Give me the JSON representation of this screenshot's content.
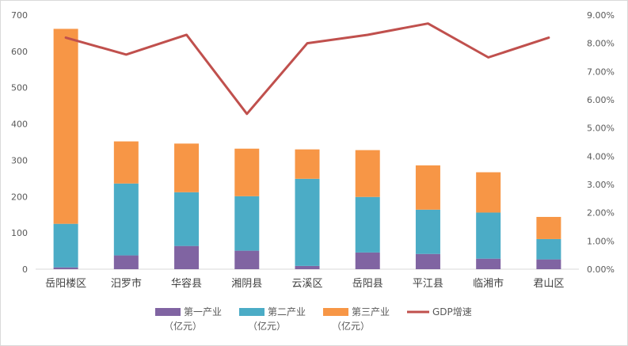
{
  "chart_data": {
    "type": "bar",
    "stacked": true,
    "categories": [
      "岳阳楼区",
      "汨罗市",
      "华容县",
      "湘阴县",
      "云溪区",
      "岳阳县",
      "平江县",
      "临湘市",
      "君山区"
    ],
    "series": [
      {
        "name": "第一产业（亿元）",
        "name_lines": [
          "第一产业",
          "（亿元）"
        ],
        "color": "#8064a2",
        "axis": "left",
        "values": [
          5,
          38,
          64,
          51,
          9,
          46,
          42,
          29,
          27
        ]
      },
      {
        "name": "第二产业（亿元）",
        "name_lines": [
          "第二产业",
          "（亿元）"
        ],
        "color": "#4bacc6",
        "axis": "left",
        "values": [
          120,
          198,
          148,
          150,
          240,
          153,
          122,
          127,
          56
        ]
      },
      {
        "name": "第三产业（亿元）",
        "name_lines": [
          "第三产业",
          "（亿元）"
        ],
        "color": "#f79646",
        "axis": "left",
        "values": [
          537,
          116,
          134,
          131,
          81,
          129,
          122,
          111,
          61
        ]
      },
      {
        "name": "GDP增速",
        "name_lines": [
          "GDP增速"
        ],
        "color": "#c0504d",
        "axis": "right",
        "type": "line",
        "values": [
          0.082,
          0.076,
          0.083,
          0.055,
          0.08,
          0.083,
          0.087,
          0.075,
          0.082
        ]
      }
    ],
    "ylim_left": [
      0,
      700
    ],
    "yticks_left": [
      "0",
      "100",
      "200",
      "300",
      "400",
      "500",
      "600",
      "700"
    ],
    "ylim_right": [
      0,
      0.09
    ],
    "yticks_right": [
      "0.00%",
      "1.00%",
      "2.00%",
      "3.00%",
      "4.00%",
      "5.00%",
      "6.00%",
      "7.00%",
      "8.00%",
      "9.00%"
    ],
    "grid": false,
    "legend_position": "bottom",
    "title": "",
    "xlabel": "",
    "ylabel": ""
  }
}
